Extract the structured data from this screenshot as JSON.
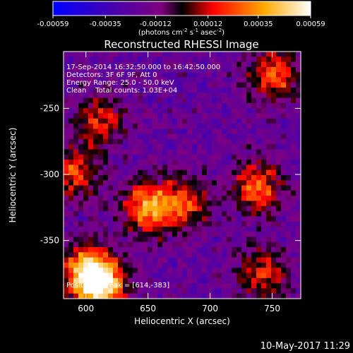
{
  "colorbar": {
    "tick_labels": [
      "-0.00059",
      "-0.00035",
      "-0.00012",
      "0.00012",
      "0.00035",
      "0.00059"
    ],
    "tick_values": [
      -0.00059,
      -0.00035,
      -0.00012,
      0.00012,
      0.00035,
      0.00059
    ],
    "range": [
      -0.00059,
      0.00059
    ],
    "units_line": "(photons cm",
    "units_exp1": "-2",
    "units_mid": " s",
    "units_exp2": "-1",
    "units_end": " asec",
    "units_exp3": "-2",
    "units_close": ")",
    "colors": [
      "#0000ff",
      "#4b00aa",
      "#800080",
      "#000000",
      "#ff0000",
      "#ffaa00",
      "#ffffff"
    ]
  },
  "chart_data": {
    "type": "heatmap",
    "title": "Reconstructed RHESSI Image",
    "xlabel": "Heliocentric X (arcsec)",
    "ylabel": "Heliocentric Y (arcsec)",
    "xlim": [
      582,
      773
    ],
    "ylim": [
      -394,
      -207
    ],
    "xticks": [
      600,
      650,
      700,
      750
    ],
    "xtick_labels": [
      "600",
      "650",
      "700",
      "750"
    ],
    "yticks": [
      -250,
      -300,
      -350
    ],
    "ytick_labels": [
      "-250",
      "-300",
      "-350"
    ],
    "annotations": [
      "17-Sep-2014 16:32:50.000 to 16:42:50.000",
      "Detectors: 3F 6F 9F, Att 0",
      "Energy Range: 25.0 - 50.0 keV",
      "Clean    Total counts: 1.03E+04"
    ],
    "peak_label": "Position of Peak = [614,-383]",
    "peak": [
      614,
      -383
    ],
    "sources": [
      {
        "x": 612,
        "y": -384,
        "amp": 1.0
      },
      {
        "x": 600,
        "y": -372,
        "amp": 0.7
      },
      {
        "x": 650,
        "y": -325,
        "amp": 0.75
      },
      {
        "x": 680,
        "y": -322,
        "amp": 0.55
      },
      {
        "x": 738,
        "y": -310,
        "amp": 0.65
      },
      {
        "x": 752,
        "y": -225,
        "amp": 0.6
      },
      {
        "x": 612,
        "y": -260,
        "amp": 0.5
      },
      {
        "x": 590,
        "y": -300,
        "amp": 0.55
      },
      {
        "x": 742,
        "y": -375,
        "amp": 0.5
      }
    ]
  },
  "timestamp": "10-May-2017 11:29"
}
